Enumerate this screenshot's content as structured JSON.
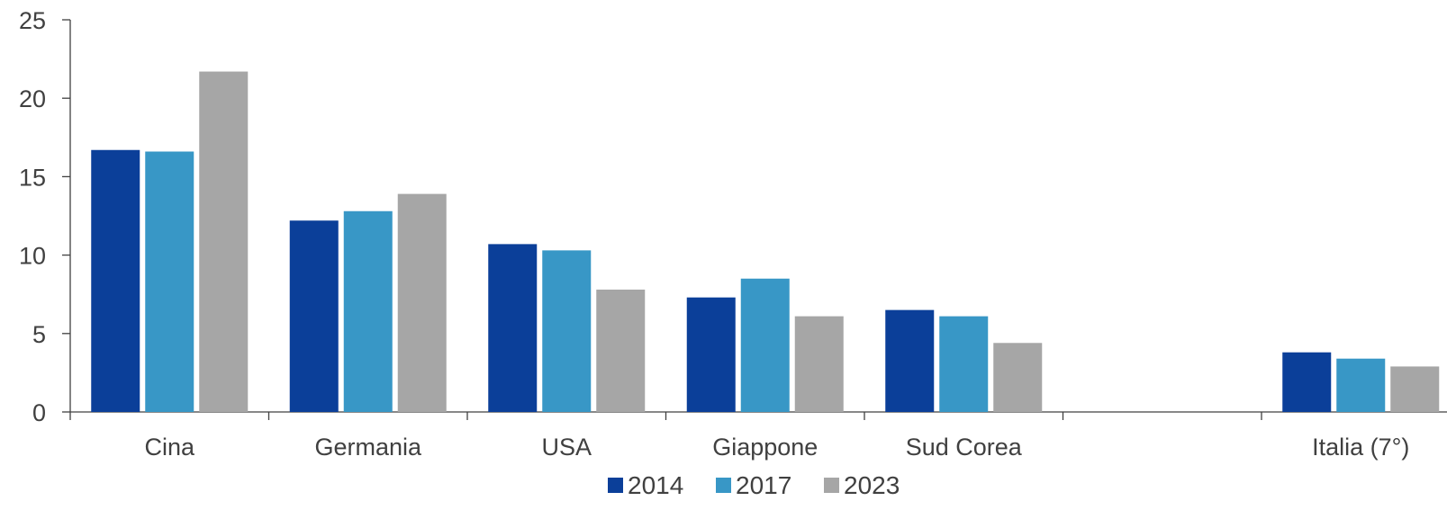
{
  "chart_data": {
    "type": "bar",
    "categories": [
      "Cina",
      "Germania",
      "USA",
      "Giappone",
      "Sud Corea",
      "",
      "Italia (7°)"
    ],
    "series": [
      {
        "name": "2014",
        "color": "#0B3F99",
        "values": [
          16.7,
          12.2,
          10.7,
          7.3,
          6.5,
          null,
          3.8
        ]
      },
      {
        "name": "2017",
        "color": "#3897C6",
        "values": [
          16.6,
          12.8,
          10.3,
          8.5,
          6.1,
          null,
          3.4
        ]
      },
      {
        "name": "2023",
        "color": "#A6A6A6",
        "values": [
          21.7,
          13.9,
          7.8,
          6.1,
          4.4,
          null,
          2.9
        ]
      }
    ],
    "ylim": [
      0,
      25
    ],
    "yticks": [
      "0",
      "5",
      "10",
      "15",
      "20",
      "25"
    ],
    "grid": false,
    "legend_position": "bottom-center"
  }
}
